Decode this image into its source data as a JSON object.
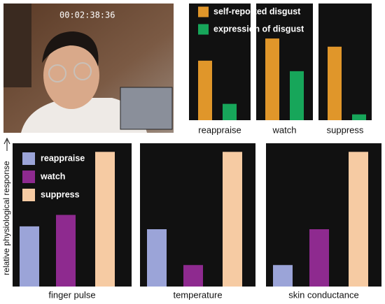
{
  "photo": {
    "timestamp": "00:02:38:36"
  },
  "chart_data": [
    {
      "type": "bar",
      "categories": [
        "reappraise",
        "watch",
        "suppress"
      ],
      "ylim": [
        0,
        100
      ],
      "series": [
        {
          "name": "self-reported disgust",
          "color": "#e0962a",
          "values": [
            51,
            70,
            63
          ]
        },
        {
          "name": "expression of disgust",
          "color": "#17a65a",
          "values": [
            14,
            42,
            5
          ]
        }
      ]
    },
    {
      "type": "bar",
      "ylabel": "relative physiological response",
      "categories": [
        "finger pulse",
        "temperature",
        "skin conductance"
      ],
      "ylim": [
        0,
        100
      ],
      "series": [
        {
          "name": "reappraise",
          "color": "#9ba4d8",
          "values": [
            42,
            40,
            15
          ]
        },
        {
          "name": "watch",
          "color": "#8e2a8f",
          "values": [
            50,
            15,
            40
          ]
        },
        {
          "name": "suppress",
          "color": "#f6cba3",
          "values": [
            94,
            94,
            94
          ]
        }
      ]
    }
  ]
}
